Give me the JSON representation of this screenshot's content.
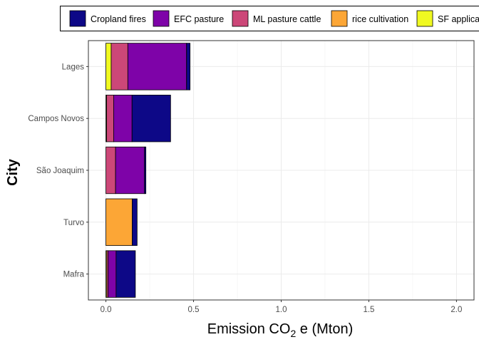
{
  "chart_data": {
    "type": "bar",
    "orientation": "horizontal",
    "stacked": true,
    "title": "",
    "xlabel_prefix": "Emission CO",
    "xlabel_subscript": "2",
    "xlabel_suffix": " e (Mton)",
    "ylabel": "City",
    "xlim": [
      -0.1,
      2.1
    ],
    "xticks": [
      0.0,
      0.5,
      1.0,
      1.5,
      2.0
    ],
    "xtick_labels": [
      "0.0",
      "0.5",
      "1.0",
      "1.5",
      "2.0"
    ],
    "grid": true,
    "legend_position": "top",
    "categories": [
      "Lages",
      "Campos Novos",
      "São Joaquim",
      "Turvo",
      "Mafra"
    ],
    "series": [
      {
        "name": "SF application",
        "color": "#F0F921",
        "values": [
          0.03,
          0.004,
          0.0,
          0.0,
          0.005
        ]
      },
      {
        "name": "rice cultivation",
        "color": "#FCA636",
        "values": [
          0.0,
          0.0,
          0.0,
          0.15,
          0.0
        ]
      },
      {
        "name": "ML pasture cattle",
        "color": "#CC4778",
        "values": [
          0.095,
          0.04,
          0.055,
          0.0,
          0.008
        ]
      },
      {
        "name": "EFC pasture",
        "color": "#7E03A8",
        "values": [
          0.335,
          0.105,
          0.165,
          0.0,
          0.045
        ]
      },
      {
        "name": "Cropland fires",
        "color": "#0D0887",
        "values": [
          0.02,
          0.22,
          0.008,
          0.028,
          0.11
        ]
      }
    ],
    "legend_order": [
      "Cropland fires",
      "EFC pasture",
      "ML pasture cattle",
      "rice cultivation",
      "SF application"
    ]
  }
}
